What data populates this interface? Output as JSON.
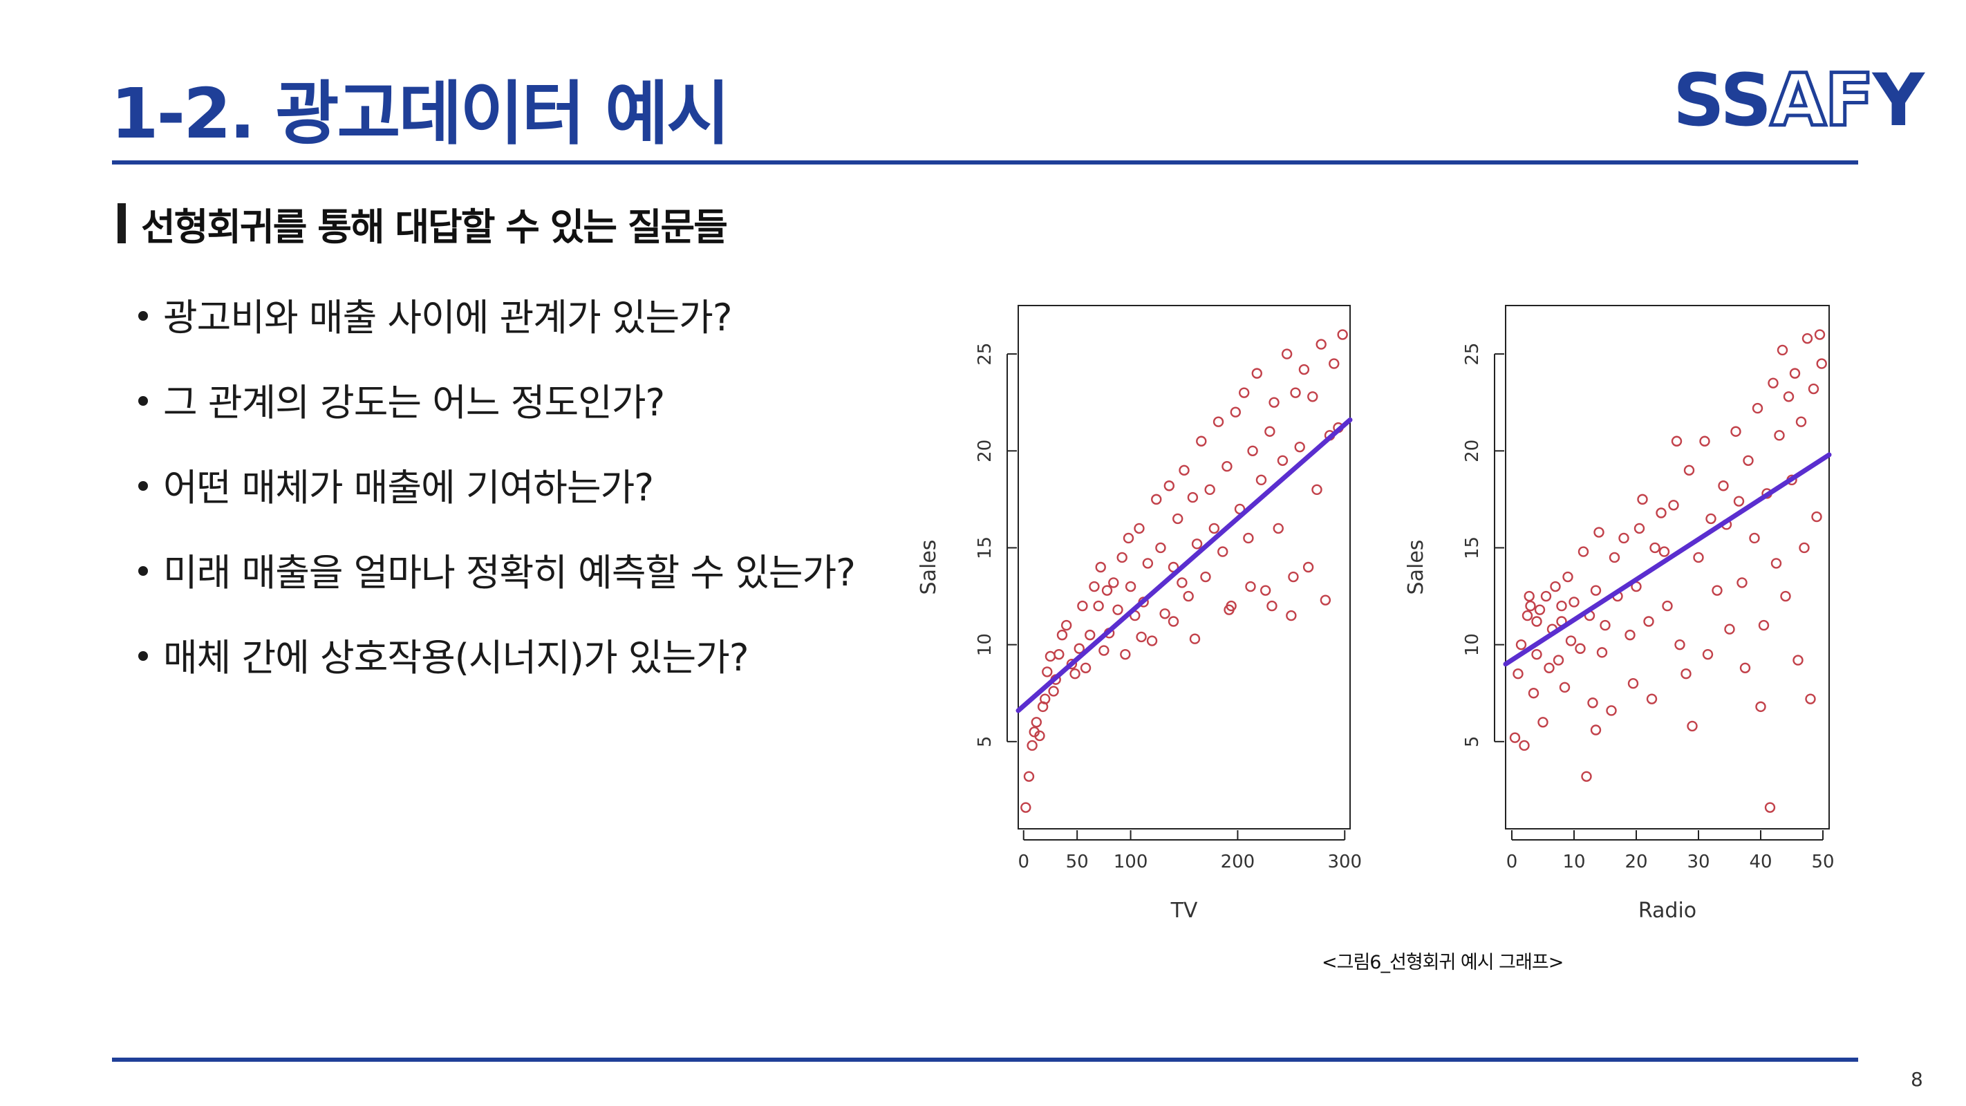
{
  "page": {
    "title": "1-2. 광고데이터 예시",
    "logo": {
      "part1": "SS",
      "part2": "AF",
      "part3": "Y"
    },
    "subheading": "선형회귀를 통해 대답할 수 있는 질문들",
    "bullets": [
      "광고비와 매출 사이에 관계가 있는가?",
      "그 관계의 강도는 어느 정도인가?",
      "어떤 매체가 매출에 기여하는가?",
      "미래 매출을 얼마나 정확히 예측할 수 있는가?",
      "매체 간에 상호작용(시너지)가 있는가?"
    ],
    "caption": "<그림6_선형회귀 예시 그래프>",
    "page_number": "8",
    "colors": {
      "brand": "#1f3f98",
      "point": "#c2414a",
      "fit_line": "#5a2ecf"
    }
  },
  "chart_data": [
    {
      "type": "scatter",
      "title": "",
      "xlabel": "TV",
      "ylabel": "Sales",
      "xlim": [
        -5,
        305
      ],
      "ylim": [
        0.5,
        27.5
      ],
      "xticks": [
        0,
        50,
        100,
        200,
        300
      ],
      "yticks": [
        5,
        10,
        15,
        20,
        25
      ],
      "fit_line": {
        "x": [
          -5,
          305
        ],
        "y": [
          6.6,
          21.6
        ]
      },
      "points": [
        [
          2,
          1.6
        ],
        [
          5,
          3.2
        ],
        [
          8,
          4.8
        ],
        [
          10,
          5.5
        ],
        [
          12,
          6
        ],
        [
          15,
          5.3
        ],
        [
          18,
          6.8
        ],
        [
          20,
          7.2
        ],
        [
          22,
          8.6
        ],
        [
          25,
          9.4
        ],
        [
          28,
          7.6
        ],
        [
          30,
          8.2
        ],
        [
          33,
          9.5
        ],
        [
          36,
          10.5
        ],
        [
          40,
          11
        ],
        [
          45,
          9
        ],
        [
          48,
          8.5
        ],
        [
          52,
          9.8
        ],
        [
          55,
          12
        ],
        [
          58,
          8.8
        ],
        [
          62,
          10.5
        ],
        [
          66,
          13
        ],
        [
          70,
          12
        ],
        [
          72,
          14
        ],
        [
          75,
          9.7
        ],
        [
          78,
          12.8
        ],
        [
          80,
          10.6
        ],
        [
          84,
          13.2
        ],
        [
          88,
          11.8
        ],
        [
          92,
          14.5
        ],
        [
          95,
          9.5
        ],
        [
          98,
          15.5
        ],
        [
          100,
          13
        ],
        [
          104,
          11.5
        ],
        [
          108,
          16
        ],
        [
          112,
          12.2
        ],
        [
          116,
          14.2
        ],
        [
          120,
          10.2
        ],
        [
          124,
          17.5
        ],
        [
          128,
          15
        ],
        [
          132,
          11.6
        ],
        [
          136,
          18.2
        ],
        [
          140,
          14
        ],
        [
          144,
          16.5
        ],
        [
          148,
          13.2
        ],
        [
          150,
          19
        ],
        [
          154,
          12.5
        ],
        [
          158,
          17.6
        ],
        [
          162,
          15.2
        ],
        [
          166,
          20.5
        ],
        [
          170,
          13.5
        ],
        [
          174,
          18
        ],
        [
          178,
          16
        ],
        [
          182,
          21.5
        ],
        [
          186,
          14.8
        ],
        [
          190,
          19.2
        ],
        [
          194,
          12
        ],
        [
          198,
          22
        ],
        [
          202,
          17
        ],
        [
          206,
          23
        ],
        [
          210,
          15.5
        ],
        [
          214,
          20
        ],
        [
          218,
          24
        ],
        [
          222,
          18.5
        ],
        [
          226,
          12.8
        ],
        [
          230,
          21
        ],
        [
          234,
          22.5
        ],
        [
          238,
          16
        ],
        [
          242,
          19.5
        ],
        [
          246,
          25
        ],
        [
          250,
          11.5
        ],
        [
          254,
          23
        ],
        [
          258,
          20.2
        ],
        [
          262,
          24.2
        ],
        [
          266,
          14
        ],
        [
          270,
          22.8
        ],
        [
          274,
          18
        ],
        [
          278,
          25.5
        ],
        [
          282,
          12.3
        ],
        [
          286,
          20.8
        ],
        [
          290,
          24.5
        ],
        [
          294,
          21.2
        ],
        [
          298,
          26
        ],
        [
          192,
          11.8
        ],
        [
          212,
          13
        ],
        [
          232,
          12
        ],
        [
          252,
          13.5
        ],
        [
          160,
          10.3
        ],
        [
          140,
          11.2
        ],
        [
          110,
          10.4
        ]
      ]
    },
    {
      "type": "scatter",
      "title": "",
      "xlabel": "Radio",
      "ylabel": "Sales",
      "xlim": [
        -1,
        51
      ],
      "ylim": [
        0.5,
        27.5
      ],
      "xticks": [
        0,
        10,
        20,
        30,
        40,
        50
      ],
      "yticks": [
        5,
        10,
        15,
        20,
        25
      ],
      "fit_line": {
        "x": [
          -1,
          51
        ],
        "y": [
          9.0,
          19.8
        ]
      },
      "points": [
        [
          0.5,
          5.2
        ],
        [
          1,
          8.5
        ],
        [
          1.5,
          10
        ],
        [
          2,
          4.8
        ],
        [
          2.5,
          11.5
        ],
        [
          3,
          12
        ],
        [
          3.5,
          7.5
        ],
        [
          4,
          9.5
        ],
        [
          4.5,
          11.8
        ],
        [
          5,
          6
        ],
        [
          5.5,
          12.5
        ],
        [
          6,
          8.8
        ],
        [
          6.5,
          10.8
        ],
        [
          7,
          13
        ],
        [
          7.5,
          9.2
        ],
        [
          8,
          11.2
        ],
        [
          8.5,
          7.8
        ],
        [
          9,
          13.5
        ],
        [
          9.5,
          10.2
        ],
        [
          10,
          12.2
        ],
        [
          11,
          9.8
        ],
        [
          11.5,
          14.8
        ],
        [
          12,
          3.2
        ],
        [
          12.5,
          11.5
        ],
        [
          13,
          7
        ],
        [
          13.5,
          12.8
        ],
        [
          14,
          15.8
        ],
        [
          14.5,
          9.6
        ],
        [
          15,
          11
        ],
        [
          16,
          6.6
        ],
        [
          16.5,
          14.5
        ],
        [
          17,
          12.5
        ],
        [
          18,
          15.5
        ],
        [
          19,
          10.5
        ],
        [
          19.5,
          8
        ],
        [
          20,
          13
        ],
        [
          21,
          17.5
        ],
        [
          22,
          11.2
        ],
        [
          22.5,
          7.2
        ],
        [
          23,
          15
        ],
        [
          24,
          16.8
        ],
        [
          25,
          12
        ],
        [
          26,
          17.2
        ],
        [
          27,
          10
        ],
        [
          28,
          8.5
        ],
        [
          28.5,
          19
        ],
        [
          29,
          5.8
        ],
        [
          30,
          14.5
        ],
        [
          31,
          20.5
        ],
        [
          31.5,
          9.5
        ],
        [
          32,
          16.5
        ],
        [
          33,
          12.8
        ],
        [
          34,
          18.2
        ],
        [
          35,
          10.8
        ],
        [
          36,
          21
        ],
        [
          37,
          13.2
        ],
        [
          37.5,
          8.8
        ],
        [
          38,
          19.5
        ],
        [
          39,
          15.5
        ],
        [
          39.5,
          22.2
        ],
        [
          40,
          6.8
        ],
        [
          40.5,
          11
        ],
        [
          41,
          17.8
        ],
        [
          41.5,
          1.6
        ],
        [
          42,
          23.5
        ],
        [
          42.5,
          14.2
        ],
        [
          43,
          20.8
        ],
        [
          43.5,
          25.2
        ],
        [
          44,
          12.5
        ],
        [
          44.5,
          22.8
        ],
        [
          45,
          18.5
        ],
        [
          45.5,
          24
        ],
        [
          46,
          9.2
        ],
        [
          46.5,
          21.5
        ],
        [
          47,
          15
        ],
        [
          47.5,
          25.8
        ],
        [
          48,
          7.2
        ],
        [
          48.5,
          23.2
        ],
        [
          49,
          16.6
        ],
        [
          49.5,
          26
        ],
        [
          49.8,
          24.5
        ],
        [
          20.5,
          16
        ],
        [
          24.5,
          14.8
        ],
        [
          34.5,
          16.2
        ],
        [
          13.5,
          5.6
        ],
        [
          8,
          12
        ],
        [
          4,
          11.2
        ],
        [
          2.8,
          12.5
        ],
        [
          26.5,
          20.5
        ],
        [
          36.5,
          17.4
        ]
      ]
    }
  ]
}
